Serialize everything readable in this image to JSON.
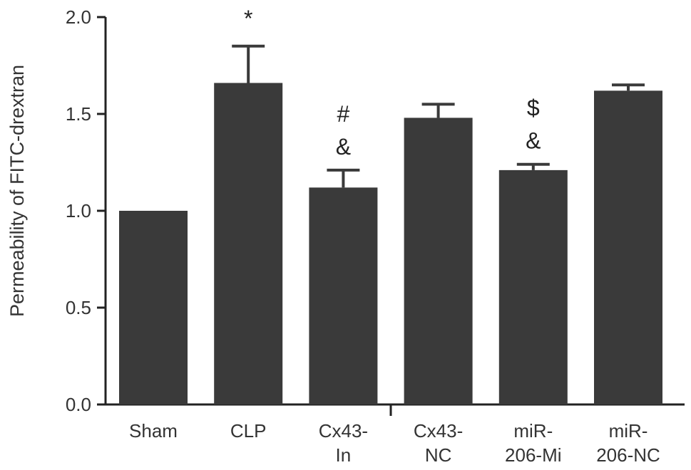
{
  "chart_data": {
    "type": "bar",
    "title": "",
    "xlabel": "",
    "ylabel": "Permeability of FITC-drextran",
    "ylim": [
      0,
      2.0
    ],
    "yticks": [
      "0.0",
      "0.5",
      "1.0",
      "1.5",
      "2.0"
    ],
    "grid": false,
    "legend": "none",
    "bar_color": "#3a3a3a",
    "categories": [
      [
        "Sham"
      ],
      [
        "CLP"
      ],
      [
        "Cx43-",
        "In"
      ],
      [
        "Cx43-",
        "NC"
      ],
      [
        "miR-",
        "206-Mi"
      ],
      [
        "miR-",
        "206-NC"
      ]
    ],
    "values": [
      1.0,
      1.66,
      1.12,
      1.48,
      1.21,
      1.62
    ],
    "error_upper": [
      0.0,
      0.19,
      0.09,
      0.07,
      0.03,
      0.03
    ],
    "annotations": [
      [],
      [
        "*"
      ],
      [
        "#",
        "&"
      ],
      [],
      [
        "$",
        "&"
      ],
      []
    ]
  }
}
